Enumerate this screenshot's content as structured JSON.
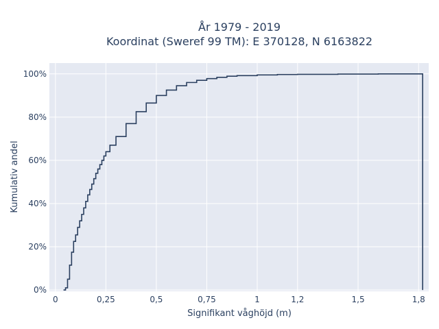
{
  "chart_data": {
    "type": "line",
    "subtype": "step-cdf",
    "title_line1": "År 1979 - 2019",
    "title_line2": "Koordinat (Sweref 99 TM): E 370128, N 6163822",
    "xlabel": "Signifikant våghöjd (m)",
    "ylabel": "Kumulativ andel",
    "xlim": [
      -0.03,
      1.85
    ],
    "ylim": [
      -0.006,
      1.05
    ],
    "grid": true,
    "x_ticks": [
      0,
      0.25,
      0.5,
      0.75,
      1,
      1.2,
      1.5,
      1.8
    ],
    "x_tick_labels": [
      "0",
      "0,25",
      "0,5",
      "0,75",
      "1",
      "1,2",
      "1,5",
      "1,8"
    ],
    "y_ticks": [
      0,
      0.2,
      0.4,
      0.6,
      0.8,
      1.0
    ],
    "y_tick_labels": [
      "0%",
      "20%",
      "40%",
      "60%",
      "80%",
      "100%"
    ],
    "colors": {
      "plot_bg": "#e5e9f2",
      "grid": "#ffffff",
      "line": "#2a3f5f",
      "text": "#2a3f5f"
    },
    "points": [
      [
        0.04,
        0.0
      ],
      [
        0.05,
        0.01
      ],
      [
        0.06,
        0.05
      ],
      [
        0.07,
        0.115
      ],
      [
        0.08,
        0.175
      ],
      [
        0.09,
        0.225
      ],
      [
        0.1,
        0.255
      ],
      [
        0.11,
        0.29
      ],
      [
        0.12,
        0.32
      ],
      [
        0.13,
        0.35
      ],
      [
        0.14,
        0.38
      ],
      [
        0.15,
        0.41
      ],
      [
        0.16,
        0.44
      ],
      [
        0.17,
        0.465
      ],
      [
        0.18,
        0.49
      ],
      [
        0.19,
        0.515
      ],
      [
        0.2,
        0.54
      ],
      [
        0.21,
        0.56
      ],
      [
        0.22,
        0.58
      ],
      [
        0.23,
        0.6
      ],
      [
        0.24,
        0.62
      ],
      [
        0.25,
        0.64
      ],
      [
        0.27,
        0.67
      ],
      [
        0.3,
        0.71
      ],
      [
        0.35,
        0.77
      ],
      [
        0.4,
        0.825
      ],
      [
        0.45,
        0.865
      ],
      [
        0.5,
        0.9
      ],
      [
        0.55,
        0.925
      ],
      [
        0.6,
        0.945
      ],
      [
        0.65,
        0.96
      ],
      [
        0.7,
        0.97
      ],
      [
        0.75,
        0.978
      ],
      [
        0.8,
        0.984
      ],
      [
        0.85,
        0.989
      ],
      [
        0.9,
        0.992
      ],
      [
        1.0,
        0.995
      ],
      [
        1.1,
        0.997
      ],
      [
        1.2,
        0.998
      ],
      [
        1.4,
        0.999
      ],
      [
        1.6,
        1.0
      ],
      [
        1.82,
        1.0
      ]
    ],
    "final_drop_x": 1.82
  }
}
